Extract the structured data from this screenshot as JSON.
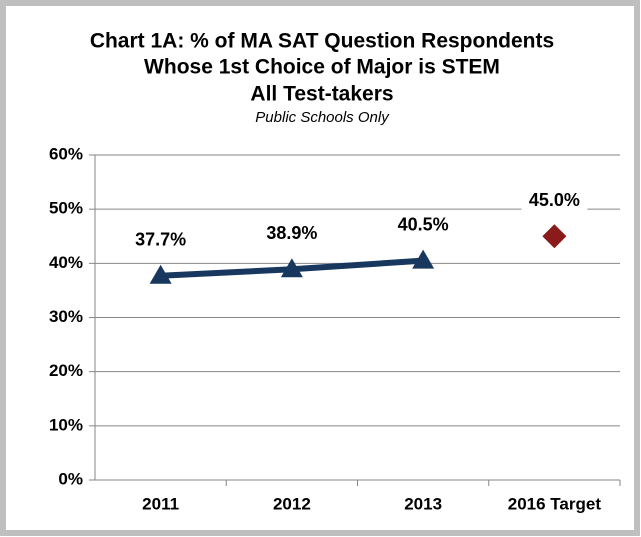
{
  "chart_data": {
    "type": "line",
    "title": [
      "Chart 1A: % of MA SAT Question Respondents",
      "Whose 1st Choice of Major is STEM",
      "All Test-takers"
    ],
    "subtitle": "Public Schools Only",
    "categories": [
      "2011",
      "2012",
      "2013",
      "2016 Target"
    ],
    "series": [
      {
        "color": "#17375e",
        "marker": "triangle",
        "values": [
          37.7,
          38.9,
          40.5,
          null
        ],
        "value_labels": [
          "37.7%",
          "38.9%",
          "40.5%",
          null
        ]
      },
      {
        "color": "#8b1a1a",
        "marker": "diamond",
        "values": [
          null,
          null,
          null,
          45.0
        ],
        "value_labels": [
          null,
          null,
          null,
          "45.0%"
        ]
      }
    ],
    "ylim": [
      0,
      60
    ],
    "yticks": [
      {
        "value": 0,
        "label": "0%"
      },
      {
        "value": 10,
        "label": "10%"
      },
      {
        "value": 20,
        "label": "20%"
      },
      {
        "value": 30,
        "label": "30%"
      },
      {
        "value": 40,
        "label": "40%"
      },
      {
        "value": 50,
        "label": "50%"
      },
      {
        "value": 60,
        "label": "60%"
      }
    ],
    "grid": true
  }
}
